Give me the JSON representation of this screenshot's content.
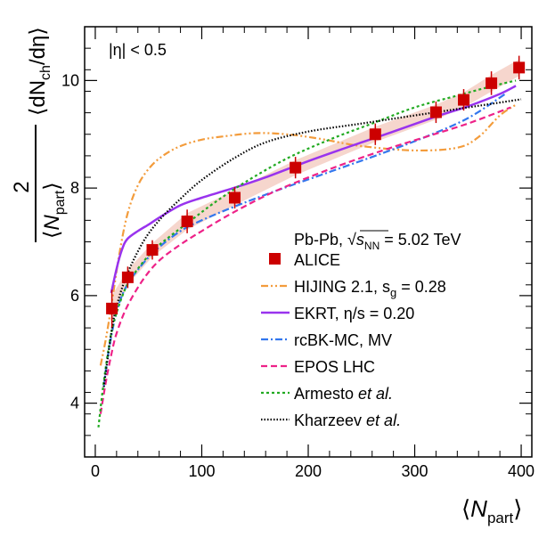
{
  "chart_data": {
    "type": "line",
    "x_axis": {
      "label": "⟨N_part⟩",
      "label_parts": {
        "open": "⟨",
        "main": "N",
        "sub": "part",
        "close": "⟩"
      },
      "range": [
        -10,
        410
      ],
      "ticks": [
        "0",
        "100",
        "200",
        "300",
        "400"
      ]
    },
    "y_axis": {
      "label": "2/⟨N_part⟩ ⟨dN_ch/dη⟩",
      "label_parts": {
        "numerator": "2",
        "denominator_open": "⟨",
        "denominator_main": "N",
        "denominator_sub": "part",
        "denominator_close": "⟩",
        "rest_open": "⟨dN",
        "rest_sub": "ch",
        "rest_close": "/dη⟩"
      },
      "range": [
        3.0,
        11.0
      ],
      "ticks": [
        "4",
        "6",
        "8",
        "10"
      ]
    },
    "annotation": "|η| < 0.5",
    "legend_header": {
      "text_prefix": "Pb-Pb, ",
      "sqrt_sub_main": "s",
      "sqrt_sub_sub": "NN",
      "text_suffix": " = 5.02 TeV"
    },
    "grid": false,
    "legend_position": "right",
    "series": [
      {
        "name": "ALICE",
        "kind": "data",
        "color": "#cc0000",
        "band_color": "#f5d2c8",
        "x": [
          15.6,
          30.5,
          53.6,
          86.3,
          131.0,
          188.0,
          263.0,
          320.0,
          346.0,
          372.0,
          398.0
        ],
        "y": [
          5.76,
          6.34,
          6.85,
          7.38,
          7.82,
          8.38,
          9.0,
          9.41,
          9.64,
          9.95,
          10.24
        ],
        "err": [
          0.35,
          0.2,
          0.18,
          0.22,
          0.2,
          0.2,
          0.2,
          0.2,
          0.2,
          0.22,
          0.22
        ]
      },
      {
        "name": "HIJING 2.1, s_g = 0.28",
        "label_main": "HIJING 2.1, s",
        "label_sub": "g",
        "label_suffix": " = 0.28",
        "color": "#f39c3c",
        "dash": "8,3,2,3,2,3",
        "x": [
          5,
          10,
          15,
          22,
          30,
          40,
          52,
          65,
          80,
          100,
          120,
          150,
          180,
          210,
          250,
          300,
          340,
          360,
          380,
          395
        ],
        "y": [
          4.7,
          5.2,
          5.8,
          6.7,
          7.5,
          8.05,
          8.4,
          8.62,
          8.78,
          8.9,
          8.96,
          9.02,
          9.0,
          8.92,
          8.78,
          8.7,
          8.75,
          8.95,
          9.35,
          9.55
        ]
      },
      {
        "name": "EKRT, η/s = 0.20",
        "color": "#9933ee",
        "dash": "",
        "x": [
          15,
          20,
          25,
          30,
          40,
          50,
          60,
          80,
          100,
          130,
          160,
          200,
          240,
          280,
          320,
          350,
          380,
          395
        ],
        "y": [
          6.05,
          6.5,
          6.85,
          7.05,
          7.2,
          7.32,
          7.45,
          7.68,
          7.82,
          8.0,
          8.2,
          8.5,
          8.78,
          9.05,
          9.33,
          9.52,
          9.75,
          9.9
        ]
      },
      {
        "name": "rcBK-MC, MV",
        "color": "#3377ee",
        "dash": "8,3,2,3",
        "x": [
          8,
          12,
          20,
          30,
          45,
          60,
          80,
          100,
          130,
          170,
          220,
          270,
          310,
          350,
          385
        ],
        "y": [
          4.3,
          4.9,
          5.7,
          6.2,
          6.6,
          6.9,
          7.2,
          7.4,
          7.65,
          7.95,
          8.3,
          8.65,
          8.95,
          9.3,
          9.75
        ]
      },
      {
        "name": "EPOS LHC",
        "color": "#ee2288",
        "dash": "7,4",
        "x": [
          5,
          10,
          15,
          20,
          30,
          45,
          60,
          80,
          100,
          130,
          170,
          220,
          270,
          310,
          350,
          390
        ],
        "y": [
          3.8,
          4.4,
          4.9,
          5.3,
          5.8,
          6.3,
          6.65,
          6.95,
          7.2,
          7.55,
          7.95,
          8.35,
          8.7,
          8.95,
          9.2,
          9.5
        ]
      },
      {
        "name": "Armesto et al.",
        "label_main": "Armesto ",
        "label_italic": "et al.",
        "color": "#22aa22",
        "dash": "3,3",
        "x": [
          3,
          8,
          15,
          22,
          30,
          40,
          55,
          70,
          90,
          110,
          140,
          180,
          220,
          260,
          300,
          340,
          370,
          395
        ],
        "y": [
          3.55,
          4.4,
          5.3,
          5.8,
          6.2,
          6.5,
          6.85,
          7.1,
          7.4,
          7.7,
          8.1,
          8.55,
          8.9,
          9.2,
          9.5,
          9.72,
          9.88,
          10.0
        ]
      },
      {
        "name": "Kharzeev et al.",
        "label_main": "Kharzeev ",
        "label_italic": "et al.",
        "color": "#000000",
        "dash": "1.5,2",
        "x": [
          8,
          15,
          20,
          30,
          45,
          60,
          80,
          100,
          130,
          160,
          200,
          250,
          300,
          350,
          400
        ],
        "y": [
          4.3,
          5.3,
          5.8,
          6.4,
          7.0,
          7.4,
          7.8,
          8.15,
          8.55,
          8.85,
          9.05,
          9.2,
          9.35,
          9.5,
          9.65
        ]
      }
    ]
  }
}
